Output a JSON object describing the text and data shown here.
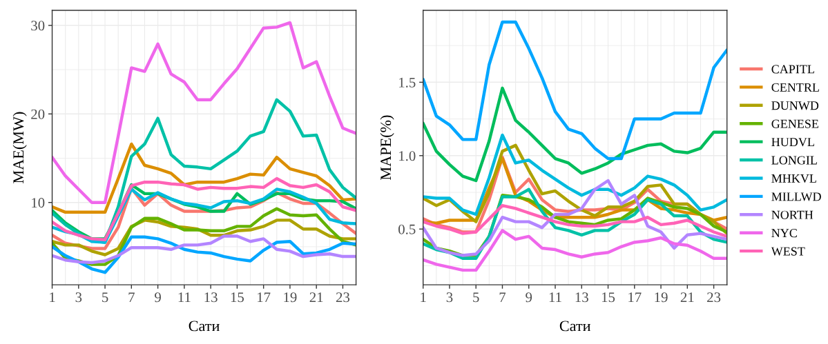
{
  "chart_data": [
    {
      "type": "line",
      "xlabel": "Сати",
      "ylabel": "MAE(MW)",
      "x": [
        1,
        2,
        3,
        4,
        5,
        6,
        7,
        8,
        9,
        10,
        11,
        12,
        13,
        14,
        15,
        16,
        17,
        18,
        19,
        20,
        21,
        22,
        23,
        24
      ],
      "xlim": [
        1,
        24
      ],
      "xticks": [
        1,
        3,
        5,
        7,
        9,
        11,
        13,
        15,
        17,
        19,
        21,
        23
      ],
      "ylim": [
        0.7,
        31.7
      ],
      "yticks": [
        10,
        20,
        30
      ],
      "grid": true,
      "series": [
        {
          "color": "#f8766d",
          "values": [
            6.3,
            5.4,
            5.1,
            4.8,
            4.8,
            7.2,
            11.6,
            9.7,
            11.0,
            9.7,
            9.0,
            9.0,
            9.0,
            9.1,
            9.4,
            9.5,
            10.2,
            11.1,
            10.4,
            9.9,
            9.9,
            8.8,
            7.6,
            6.5
          ]
        },
        {
          "color": "#db8e00",
          "values": [
            9.5,
            8.9,
            8.9,
            8.9,
            8.9,
            12.7,
            16.6,
            14.2,
            13.8,
            13.3,
            12.0,
            12.3,
            12.3,
            12.3,
            12.7,
            13.2,
            13.1,
            15.1,
            13.8,
            13.4,
            13.0,
            11.9,
            10.3,
            10.4
          ]
        },
        {
          "color": "#aea200",
          "values": [
            5.6,
            5.2,
            5.2,
            4.5,
            4.1,
            4.8,
            7.3,
            8.0,
            7.8,
            7.3,
            7.2,
            7.0,
            6.3,
            6.3,
            6.8,
            6.9,
            7.3,
            8.0,
            8.0,
            7.0,
            7.0,
            6.2,
            5.9,
            5.9
          ]
        },
        {
          "color": "#64b200",
          "values": [
            5.4,
            3.7,
            3.4,
            3.0,
            3.0,
            4.0,
            7.2,
            8.2,
            8.2,
            7.6,
            6.9,
            6.9,
            6.8,
            6.8,
            7.3,
            7.3,
            8.5,
            9.3,
            8.6,
            8.5,
            8.6,
            7.0,
            5.6,
            5.2
          ]
        },
        {
          "color": "#00bd5c",
          "values": [
            9.1,
            7.7,
            6.7,
            5.9,
            5.9,
            8.8,
            12.0,
            11.0,
            11.0,
            10.4,
            9.8,
            9.5,
            9.0,
            9.0,
            11.0,
            9.8,
            10.3,
            11.0,
            11.0,
            10.4,
            10.2,
            10.2,
            10.1,
            9.3
          ]
        },
        {
          "color": "#00c1a7",
          "values": [
            8.8,
            7.5,
            6.5,
            5.7,
            5.5,
            9.5,
            15.2,
            16.6,
            19.5,
            15.4,
            14.1,
            14.0,
            13.8,
            14.8,
            15.8,
            17.5,
            18.0,
            21.6,
            20.3,
            17.5,
            17.6,
            13.7,
            11.7,
            10.5
          ]
        },
        {
          "color": "#00bade",
          "values": [
            7.2,
            6.7,
            6.4,
            5.6,
            5.5,
            8.5,
            11.5,
            10.3,
            11.1,
            10.4,
            9.9,
            9.7,
            9.4,
            10.1,
            10.2,
            9.9,
            10.4,
            11.5,
            11.2,
            10.6,
            9.9,
            8.1,
            7.7,
            7.6
          ]
        },
        {
          "color": "#00a6ff",
          "values": [
            5.0,
            4.0,
            3.3,
            2.5,
            2.1,
            3.8,
            6.1,
            6.1,
            5.9,
            5.4,
            4.7,
            4.4,
            4.3,
            3.9,
            3.6,
            3.4,
            4.6,
            5.5,
            5.6,
            4.2,
            4.3,
            4.7,
            5.4,
            5.3
          ]
        },
        {
          "color": "#b385ff",
          "values": [
            4.0,
            3.5,
            3.3,
            3.2,
            3.4,
            4.0,
            4.9,
            4.9,
            4.9,
            4.7,
            5.2,
            5.2,
            5.4,
            6.2,
            6.2,
            5.6,
            5.9,
            4.7,
            4.5,
            3.9,
            4.1,
            4.2,
            3.9,
            3.9
          ]
        },
        {
          "color": "#ef67eb",
          "values": [
            15.1,
            13.0,
            11.5,
            10.0,
            10.0,
            17.5,
            25.2,
            24.8,
            27.9,
            24.5,
            23.6,
            21.6,
            21.6,
            23.4,
            25.1,
            27.4,
            29.7,
            29.8,
            30.3,
            25.2,
            25.9,
            22.0,
            18.4,
            17.8
          ]
        },
        {
          "color": "#ff63b6",
          "values": [
            7.8,
            6.8,
            6.3,
            5.9,
            5.8,
            8.8,
            11.9,
            12.3,
            12.3,
            12.1,
            12.0,
            11.5,
            11.7,
            11.6,
            11.6,
            11.8,
            11.7,
            12.7,
            11.9,
            11.7,
            12.0,
            11.2,
            9.5,
            9.1
          ]
        }
      ]
    },
    {
      "type": "line",
      "xlabel": "Сати",
      "ylabel": "MAPE(%)",
      "x": [
        1,
        2,
        3,
        4,
        5,
        6,
        7,
        8,
        9,
        10,
        11,
        12,
        13,
        14,
        15,
        16,
        17,
        18,
        19,
        20,
        21,
        22,
        23,
        24
      ],
      "xlim": [
        1,
        24
      ],
      "xticks": [
        1,
        3,
        5,
        7,
        9,
        11,
        13,
        15,
        17,
        19,
        21,
        23
      ],
      "ylim": [
        0.12,
        1.99
      ],
      "yticks": [
        0.5,
        {
          "value": 1.0,
          "label": "1.0"
        },
        1.5
      ],
      "grid": true,
      "legend": "right",
      "series": [
        {
          "name": "CAPITL",
          "color": "#f8766d",
          "values": [
            0.57,
            0.53,
            0.51,
            0.48,
            0.48,
            0.7,
            0.99,
            0.75,
            0.84,
            0.7,
            0.63,
            0.62,
            0.63,
            0.63,
            0.64,
            0.63,
            0.68,
            0.77,
            0.69,
            0.67,
            0.67,
            0.6,
            0.55,
            0.5
          ]
        },
        {
          "name": "CENTRL",
          "color": "#db8e00",
          "values": [
            0.55,
            0.54,
            0.56,
            0.56,
            0.56,
            0.78,
            0.98,
            0.73,
            0.69,
            0.63,
            0.58,
            0.58,
            0.58,
            0.58,
            0.6,
            0.63,
            0.63,
            0.7,
            0.64,
            0.63,
            0.61,
            0.6,
            0.56,
            0.58
          ]
        },
        {
          "name": "DUNWD",
          "color": "#aea200",
          "values": [
            0.71,
            0.66,
            0.7,
            0.62,
            0.55,
            0.75,
            1.03,
            1.07,
            0.9,
            0.74,
            0.76,
            0.69,
            0.63,
            0.59,
            0.65,
            0.65,
            0.69,
            0.79,
            0.8,
            0.67,
            0.67,
            0.6,
            0.55,
            0.47
          ]
        },
        {
          "name": "GENESE",
          "color": "#64b200",
          "values": [
            0.43,
            0.37,
            0.35,
            0.32,
            0.32,
            0.45,
            0.73,
            0.72,
            0.7,
            0.65,
            0.58,
            0.55,
            0.54,
            0.53,
            0.56,
            0.57,
            0.63,
            0.71,
            0.68,
            0.65,
            0.64,
            0.6,
            0.52,
            0.48
          ]
        },
        {
          "name": "HUDVL",
          "color": "#00bd5c",
          "values": [
            1.22,
            1.03,
            0.94,
            0.86,
            0.83,
            1.1,
            1.46,
            1.24,
            1.16,
            1.07,
            0.98,
            0.95,
            0.88,
            0.91,
            0.95,
            1.01,
            1.04,
            1.07,
            1.08,
            1.03,
            1.02,
            1.05,
            1.16,
            1.16
          ]
        },
        {
          "name": "LONGIL",
          "color": "#00c1a7",
          "values": [
            0.4,
            0.36,
            0.34,
            0.3,
            0.3,
            0.45,
            0.72,
            0.72,
            0.77,
            0.62,
            0.51,
            0.49,
            0.46,
            0.49,
            0.49,
            0.55,
            0.6,
            0.7,
            0.67,
            0.59,
            0.59,
            0.48,
            0.43,
            0.41
          ]
        },
        {
          "name": "MHKVL",
          "color": "#00bade",
          "values": [
            0.72,
            0.71,
            0.71,
            0.63,
            0.6,
            0.85,
            1.14,
            0.95,
            0.97,
            0.9,
            0.84,
            0.78,
            0.73,
            0.77,
            0.77,
            0.73,
            0.78,
            0.86,
            0.84,
            0.8,
            0.73,
            0.63,
            0.65,
            0.7
          ]
        },
        {
          "name": "MILLWD",
          "color": "#00a6ff",
          "values": [
            1.52,
            1.27,
            1.21,
            1.11,
            1.11,
            1.62,
            1.91,
            1.91,
            1.73,
            1.53,
            1.3,
            1.18,
            1.15,
            1.05,
            0.98,
            0.98,
            1.25,
            1.25,
            1.25,
            1.29,
            1.29,
            1.29,
            1.6,
            1.72
          ]
        },
        {
          "name": "NORTH",
          "color": "#b385ff",
          "values": [
            0.51,
            0.37,
            0.34,
            0.32,
            0.33,
            0.42,
            0.58,
            0.55,
            0.55,
            0.51,
            0.6,
            0.6,
            0.64,
            0.77,
            0.83,
            0.67,
            0.73,
            0.52,
            0.48,
            0.37,
            0.46,
            0.47,
            0.45,
            0.43
          ]
        },
        {
          "name": "NYC",
          "color": "#ef67eb",
          "values": [
            0.29,
            0.26,
            0.24,
            0.22,
            0.22,
            0.35,
            0.49,
            0.43,
            0.45,
            0.37,
            0.36,
            0.33,
            0.31,
            0.33,
            0.34,
            0.38,
            0.41,
            0.42,
            0.44,
            0.4,
            0.39,
            0.35,
            0.3,
            0.3
          ]
        },
        {
          "name": "WEST",
          "color": "#ff63b6",
          "values": [
            0.55,
            0.52,
            0.5,
            0.47,
            0.48,
            0.57,
            0.66,
            0.64,
            0.61,
            0.58,
            0.55,
            0.53,
            0.52,
            0.52,
            0.53,
            0.55,
            0.55,
            0.58,
            0.53,
            0.54,
            0.56,
            0.52,
            0.48,
            0.45
          ]
        }
      ]
    }
  ]
}
